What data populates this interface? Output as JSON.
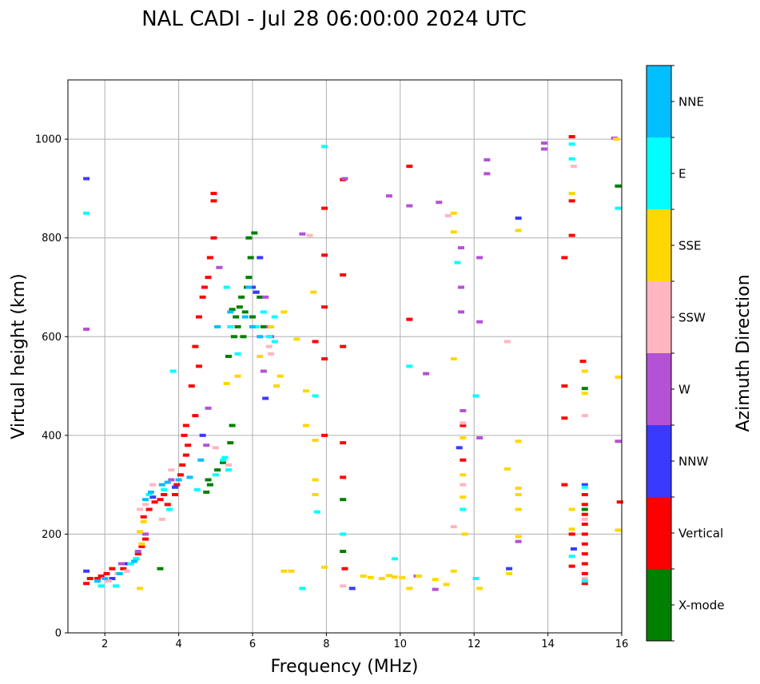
{
  "chart_data": {
    "type": "scatter",
    "title": "NAL CADI - Jul 28 06:00:00 2024 UTC",
    "xlabel": "Frequency (MHz)",
    "ylabel": "Virtual height (km)",
    "xlim": [
      1,
      16
    ],
    "ylim": [
      0,
      1120
    ],
    "xticks": [
      2,
      4,
      6,
      8,
      10,
      12,
      14,
      16
    ],
    "yticks": [
      0,
      200,
      400,
      600,
      800,
      1000
    ],
    "grid": true,
    "colorbar": {
      "label": "Azimuth Direction",
      "categories": [
        "X-mode",
        "Vertical",
        "NNW",
        "W",
        "SSW",
        "SSE",
        "E",
        "NNE"
      ],
      "colors": [
        "#008000",
        "#ff0000",
        "#3a3aff",
        "#b452d6",
        "#ffb6c1",
        "#ffd700",
        "#00ffff",
        "#00bfff"
      ]
    },
    "series": [
      {
        "name": "X-mode",
        "points": [
          [
            4.75,
            285
          ],
          [
            4.8,
            310
          ],
          [
            4.85,
            300
          ],
          [
            5.05,
            330
          ],
          [
            5.2,
            345
          ],
          [
            5.4,
            385
          ],
          [
            5.45,
            420
          ],
          [
            5.35,
            560
          ],
          [
            5.5,
            600
          ],
          [
            5.55,
            640
          ],
          [
            5.6,
            620
          ],
          [
            5.7,
            680
          ],
          [
            5.75,
            600
          ],
          [
            5.8,
            650
          ],
          [
            5.85,
            700
          ],
          [
            5.9,
            720
          ],
          [
            5.95,
            760
          ],
          [
            6.0,
            640
          ],
          [
            6.1,
            690
          ],
          [
            6.05,
            810
          ],
          [
            5.9,
            800
          ],
          [
            6.2,
            680
          ],
          [
            6.3,
            620
          ],
          [
            5.65,
            660
          ],
          [
            5.45,
            655
          ],
          [
            3.5,
            130
          ],
          [
            8.45,
            270
          ],
          [
            8.45,
            165
          ],
          [
            15.9,
            905
          ],
          [
            15.0,
            495
          ],
          [
            15.0,
            250
          ]
        ]
      },
      {
        "name": "Vertical",
        "points": [
          [
            1.5,
            100
          ],
          [
            1.6,
            110
          ],
          [
            1.8,
            110
          ],
          [
            1.9,
            115
          ],
          [
            2.05,
            120
          ],
          [
            2.2,
            130
          ],
          [
            2.5,
            130
          ],
          [
            2.7,
            140
          ],
          [
            2.85,
            150
          ],
          [
            2.9,
            160
          ],
          [
            3.0,
            175
          ],
          [
            3.1,
            190
          ],
          [
            3.05,
            235
          ],
          [
            3.2,
            250
          ],
          [
            3.35,
            265
          ],
          [
            3.5,
            270
          ],
          [
            3.6,
            280
          ],
          [
            3.7,
            260
          ],
          [
            3.9,
            280
          ],
          [
            3.95,
            300
          ],
          [
            4.05,
            320
          ],
          [
            4.1,
            340
          ],
          [
            4.2,
            360
          ],
          [
            4.25,
            380
          ],
          [
            4.15,
            400
          ],
          [
            4.2,
            420
          ],
          [
            4.45,
            440
          ],
          [
            4.35,
            500
          ],
          [
            4.55,
            540
          ],
          [
            4.55,
            640
          ],
          [
            4.65,
            680
          ],
          [
            4.7,
            700
          ],
          [
            4.8,
            720
          ],
          [
            4.85,
            760
          ],
          [
            4.95,
            800
          ],
          [
            4.45,
            580
          ],
          [
            4.95,
            890
          ],
          [
            4.95,
            875
          ],
          [
            7.7,
            590
          ],
          [
            7.95,
            400
          ],
          [
            7.95,
            555
          ],
          [
            7.95,
            660
          ],
          [
            7.95,
            765
          ],
          [
            7.95,
            860
          ],
          [
            8.45,
            918
          ],
          [
            8.45,
            725
          ],
          [
            8.45,
            580
          ],
          [
            8.45,
            385
          ],
          [
            8.45,
            315
          ],
          [
            8.5,
            130
          ],
          [
            10.25,
            945
          ],
          [
            10.25,
            635
          ],
          [
            14.45,
            760
          ],
          [
            14.45,
            500
          ],
          [
            14.45,
            435
          ],
          [
            14.45,
            300
          ],
          [
            14.65,
            1005
          ],
          [
            14.65,
            875
          ],
          [
            14.65,
            805
          ],
          [
            14.65,
            200
          ],
          [
            14.65,
            135
          ],
          [
            14.95,
            550
          ],
          [
            15.0,
            100
          ],
          [
            15.0,
            120
          ],
          [
            15.0,
            140
          ],
          [
            15.0,
            160
          ],
          [
            15.0,
            180
          ],
          [
            15.0,
            200
          ],
          [
            15.0,
            220
          ],
          [
            15.0,
            240
          ],
          [
            15.0,
            260
          ],
          [
            15.0,
            280
          ],
          [
            15.95,
            265
          ],
          [
            11.7,
            420
          ],
          [
            11.7,
            350
          ]
        ]
      },
      {
        "name": "NNW",
        "points": [
          [
            1.5,
            920
          ],
          [
            1.5,
            125
          ],
          [
            2.2,
            110
          ],
          [
            2.6,
            140
          ],
          [
            3.3,
            275
          ],
          [
            3.9,
            295
          ],
          [
            6.0,
            700
          ],
          [
            6.1,
            690
          ],
          [
            6.35,
            475
          ],
          [
            6.2,
            760
          ],
          [
            4.65,
            400
          ],
          [
            8.7,
            90
          ],
          [
            12.95,
            130
          ],
          [
            13.2,
            840
          ],
          [
            11.6,
            375
          ],
          [
            15.0,
            300
          ],
          [
            14.7,
            170
          ]
        ]
      },
      {
        "name": "W",
        "points": [
          [
            1.5,
            615
          ],
          [
            2.45,
            140
          ],
          [
            2.9,
            165
          ],
          [
            3.1,
            200
          ],
          [
            3.8,
            310
          ],
          [
            4.8,
            455
          ],
          [
            4.75,
            380
          ],
          [
            5.1,
            740
          ],
          [
            6.3,
            530
          ],
          [
            6.35,
            680
          ],
          [
            6.45,
            620
          ],
          [
            6.5,
            600
          ],
          [
            7.35,
            808
          ],
          [
            8.5,
            920
          ],
          [
            9.7,
            885
          ],
          [
            10.25,
            865
          ],
          [
            10.45,
            115
          ],
          [
            10.7,
            525
          ],
          [
            10.95,
            88
          ],
          [
            11.05,
            872
          ],
          [
            11.65,
            700
          ],
          [
            11.65,
            650
          ],
          [
            11.65,
            780
          ],
          [
            11.7,
            450
          ],
          [
            12.15,
            760
          ],
          [
            12.15,
            630
          ],
          [
            12.15,
            395
          ],
          [
            12.35,
            958
          ],
          [
            12.35,
            930
          ],
          [
            13.2,
            185
          ],
          [
            13.9,
            992
          ],
          [
            13.9,
            980
          ],
          [
            15.8,
            1002
          ],
          [
            15.9,
            388
          ]
        ]
      },
      {
        "name": "SSW",
        "points": [
          [
            2.1,
            105
          ],
          [
            2.35,
            120
          ],
          [
            2.6,
            125
          ],
          [
            2.95,
            250
          ],
          [
            3.1,
            260
          ],
          [
            3.3,
            300
          ],
          [
            3.55,
            230
          ],
          [
            3.8,
            330
          ],
          [
            5.0,
            375
          ],
          [
            5.35,
            340
          ],
          [
            6.45,
            580
          ],
          [
            6.5,
            565
          ],
          [
            7.55,
            805
          ],
          [
            8.45,
            95
          ],
          [
            11.3,
            845
          ],
          [
            11.45,
            215
          ],
          [
            11.7,
            425
          ],
          [
            11.7,
            300
          ],
          [
            12.9,
            590
          ],
          [
            14.7,
            945
          ],
          [
            15.0,
            440
          ],
          [
            15.0,
            110
          ],
          [
            15.0,
            230
          ]
        ]
      },
      {
        "name": "SSE",
        "points": [
          [
            2.95,
            90
          ],
          [
            2.95,
            205
          ],
          [
            3.0,
            180
          ],
          [
            3.05,
            225
          ],
          [
            5.3,
            505
          ],
          [
            5.6,
            520
          ],
          [
            6.2,
            560
          ],
          [
            6.5,
            620
          ],
          [
            6.65,
            500
          ],
          [
            6.75,
            520
          ],
          [
            6.85,
            650
          ],
          [
            7.2,
            595
          ],
          [
            7.45,
            490
          ],
          [
            7.65,
            690
          ],
          [
            7.7,
            310
          ],
          [
            7.7,
            280
          ],
          [
            7.7,
            390
          ],
          [
            7.45,
            420
          ],
          [
            6.85,
            125
          ],
          [
            7.05,
            125
          ],
          [
            7.95,
            133
          ],
          [
            9.0,
            115
          ],
          [
            9.2,
            112
          ],
          [
            9.5,
            110
          ],
          [
            9.7,
            116
          ],
          [
            9.85,
            113
          ],
          [
            10.05,
            112
          ],
          [
            10.25,
            90
          ],
          [
            10.5,
            115
          ],
          [
            10.95,
            108
          ],
          [
            11.25,
            98
          ],
          [
            11.45,
            125
          ],
          [
            11.45,
            555
          ],
          [
            11.45,
            850
          ],
          [
            11.45,
            812
          ],
          [
            11.7,
            395
          ],
          [
            11.7,
            320
          ],
          [
            11.7,
            275
          ],
          [
            11.75,
            200
          ],
          [
            12.15,
            90
          ],
          [
            12.9,
            332
          ],
          [
            12.95,
            120
          ],
          [
            13.2,
            388
          ],
          [
            13.2,
            815
          ],
          [
            13.2,
            293
          ],
          [
            13.2,
            280
          ],
          [
            13.2,
            250
          ],
          [
            13.2,
            195
          ],
          [
            14.65,
            890
          ],
          [
            14.65,
            250
          ],
          [
            14.65,
            210
          ],
          [
            15.0,
            530
          ],
          [
            15.0,
            485
          ],
          [
            15.9,
            518
          ],
          [
            15.9,
            208
          ],
          [
            15.85,
            1000
          ]
        ]
      },
      {
        "name": "E",
        "points": [
          [
            1.5,
            850
          ],
          [
            1.9,
            95
          ],
          [
            2.3,
            95
          ],
          [
            2.7,
            140
          ],
          [
            2.85,
            150
          ],
          [
            3.2,
            280
          ],
          [
            3.6,
            290
          ],
          [
            3.75,
            250
          ],
          [
            3.85,
            530
          ],
          [
            4.5,
            290
          ],
          [
            5.0,
            320
          ],
          [
            5.2,
            350
          ],
          [
            5.35,
            330
          ],
          [
            5.25,
            355
          ],
          [
            5.3,
            700
          ],
          [
            5.4,
            620
          ],
          [
            5.6,
            565
          ],
          [
            6.1,
            620
          ],
          [
            6.3,
            650
          ],
          [
            6.45,
            600
          ],
          [
            6.6,
            640
          ],
          [
            6.6,
            590
          ],
          [
            7.35,
            90
          ],
          [
            7.75,
            245
          ],
          [
            7.7,
            480
          ],
          [
            7.95,
            985
          ],
          [
            8.45,
            200
          ],
          [
            9.85,
            150
          ],
          [
            10.25,
            540
          ],
          [
            11.55,
            750
          ],
          [
            11.7,
            250
          ],
          [
            12.05,
            110
          ],
          [
            12.05,
            480
          ],
          [
            14.65,
            990
          ],
          [
            14.65,
            960
          ],
          [
            14.65,
            155
          ],
          [
            15.0,
            295
          ],
          [
            15.0,
            105
          ],
          [
            15.9,
            860
          ]
        ]
      },
      {
        "name": "NNE",
        "points": [
          [
            1.8,
            105
          ],
          [
            2.0,
            110
          ],
          [
            2.4,
            120
          ],
          [
            2.8,
            145
          ],
          [
            3.1,
            270
          ],
          [
            3.25,
            285
          ],
          [
            3.55,
            300
          ],
          [
            3.7,
            305
          ],
          [
            4.0,
            310
          ],
          [
            4.3,
            315
          ],
          [
            4.6,
            350
          ],
          [
            5.05,
            620
          ],
          [
            5.4,
            650
          ],
          [
            5.8,
            640
          ],
          [
            5.9,
            700
          ],
          [
            6.0,
            620
          ],
          [
            6.2,
            600
          ]
        ]
      }
    ]
  }
}
